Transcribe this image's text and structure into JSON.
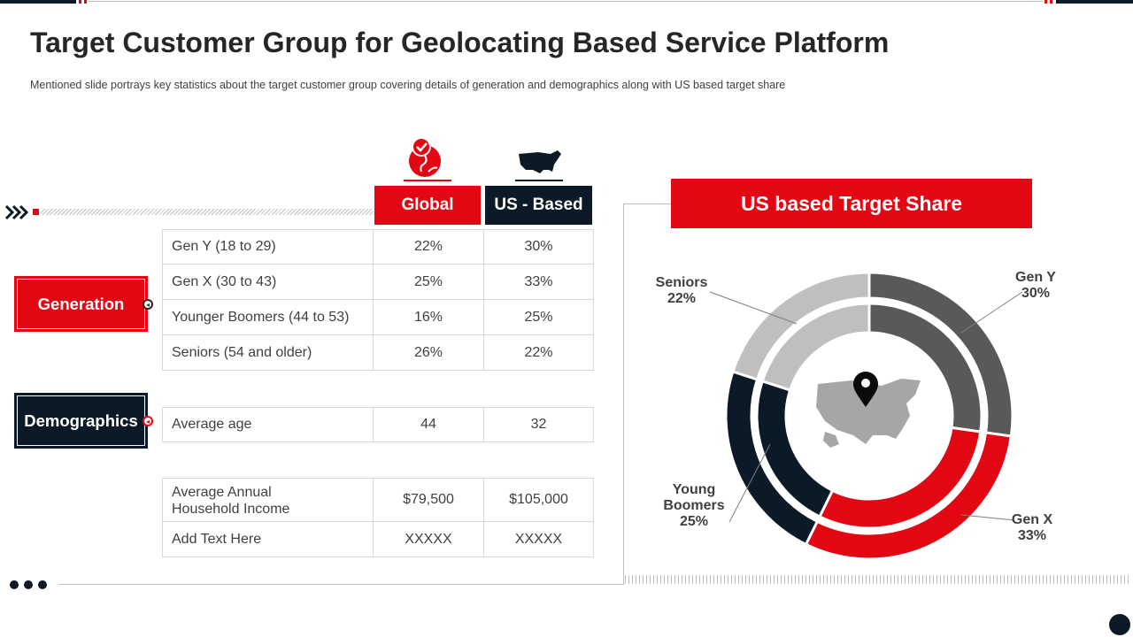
{
  "header": {
    "title": "Target Customer Group for Geolocating Based Service Platform",
    "subtitle": "Mentioned slide portrays key statistics about the target customer group covering details of generation and demographics along with US based target share"
  },
  "colors": {
    "red": "#e30613",
    "navy": "#0b1a26",
    "dark_gray": "#595959",
    "light_gray": "#bfbfbf"
  },
  "table": {
    "columns": [
      "Global",
      "US - Based"
    ],
    "side_labels": {
      "generation": "Generation",
      "demographics": "Demographics"
    },
    "generation_rows": [
      {
        "label": "Gen Y (18 to 29)",
        "global": "22%",
        "us": "30%"
      },
      {
        "label": "Gen X (30 to 43)",
        "global": "25%",
        "us": "33%"
      },
      {
        "label": "Younger Boomers (44 to 53)",
        "global": "16%",
        "us": "25%"
      },
      {
        "label": "Seniors (54 and older)",
        "global": "26%",
        "us": "22%"
      }
    ],
    "age_row": {
      "label": "Average age",
      "global": "44",
      "us": "32"
    },
    "income_row": {
      "label_line1": "Average Annual",
      "label_line2": "Household Income",
      "global": "$79,500",
      "us": "$105,000"
    },
    "extra_row": {
      "label": "Add Text Here",
      "global": "XXXXX",
      "us": "XXXXX"
    }
  },
  "share": {
    "heading": "US based Target Share"
  },
  "chart_data": {
    "type": "pie",
    "title": "US based Target Share",
    "categories": [
      "Gen Y",
      "Gen X",
      "Young Boomers",
      "Seniors"
    ],
    "values": [
      30,
      33,
      25,
      22
    ],
    "labels": [
      "30%",
      "33%",
      "25%",
      "22%"
    ],
    "colors": [
      "#595959",
      "#e30613",
      "#0b1a26",
      "#bfbfbf"
    ]
  }
}
